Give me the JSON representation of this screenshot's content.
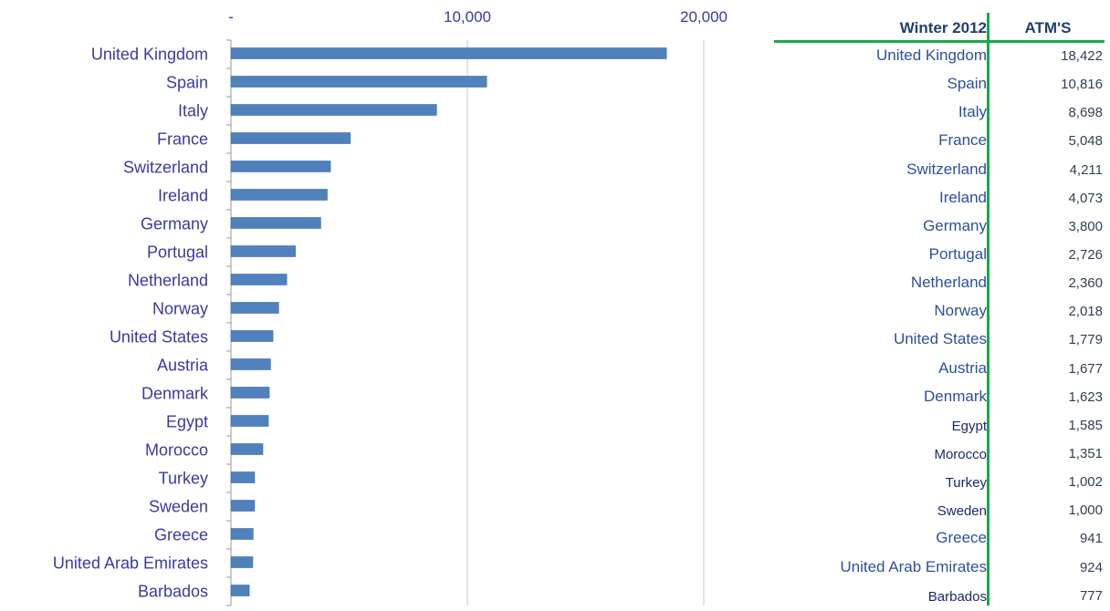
{
  "chart_data": {
    "type": "bar",
    "orientation": "horizontal",
    "categories": [
      "United Kingdom",
      "Spain",
      "Italy",
      "France",
      "Switzerland",
      "Ireland",
      "Germany",
      "Portugal",
      "Netherland",
      "Norway",
      "United States",
      "Austria",
      "Denmark",
      "Egypt",
      "Morocco",
      "Turkey",
      "Sweden",
      "Greece",
      "United Arab Emirates",
      "Barbados"
    ],
    "values": [
      18422,
      10816,
      8698,
      5048,
      4211,
      4073,
      3800,
      2726,
      2360,
      2018,
      1779,
      1677,
      1623,
      1585,
      1351,
      1002,
      1000,
      941,
      924,
      777
    ],
    "xlim": [
      0,
      20000
    ],
    "x_ticks": [
      "-",
      "10,000",
      "20,000"
    ],
    "x_tick_values": [
      0,
      10000,
      20000
    ],
    "x_axis_position": "top",
    "grid": true,
    "bar_color": "#4f81bd",
    "label_color": "#3a3aa0"
  },
  "table": {
    "header_country": "Winter 2012",
    "header_value": "ATM'S",
    "rows": [
      {
        "country": "United Kingdom",
        "value": "18,422"
      },
      {
        "country": "Spain",
        "value": "10,816"
      },
      {
        "country": "Italy",
        "value": "8,698"
      },
      {
        "country": "France",
        "value": "5,048"
      },
      {
        "country": "Switzerland",
        "value": "4,211"
      },
      {
        "country": "Ireland",
        "value": "4,073"
      },
      {
        "country": "Germany",
        "value": "3,800"
      },
      {
        "country": "Portugal",
        "value": "2,726"
      },
      {
        "country": "Netherland",
        "value": "2,360"
      },
      {
        "country": "Norway",
        "value": "2,018"
      },
      {
        "country": "United States",
        "value": "1,779"
      },
      {
        "country": "Austria",
        "value": "1,677"
      },
      {
        "country": "Denmark",
        "value": "1,623"
      },
      {
        "country": "Egypt",
        "value": "1,585",
        "small": true
      },
      {
        "country": "Morocco",
        "value": "1,351",
        "small": true
      },
      {
        "country": "Turkey",
        "value": "1,002",
        "small": true
      },
      {
        "country": "Sweden",
        "value": "1,000",
        "small": true
      },
      {
        "country": "Greece",
        "value": "941"
      },
      {
        "country": "United Arab Emirates",
        "value": "924"
      },
      {
        "country": "Barbados",
        "value": "777",
        "small": true
      }
    ],
    "accent_color": "#1aa84a"
  }
}
